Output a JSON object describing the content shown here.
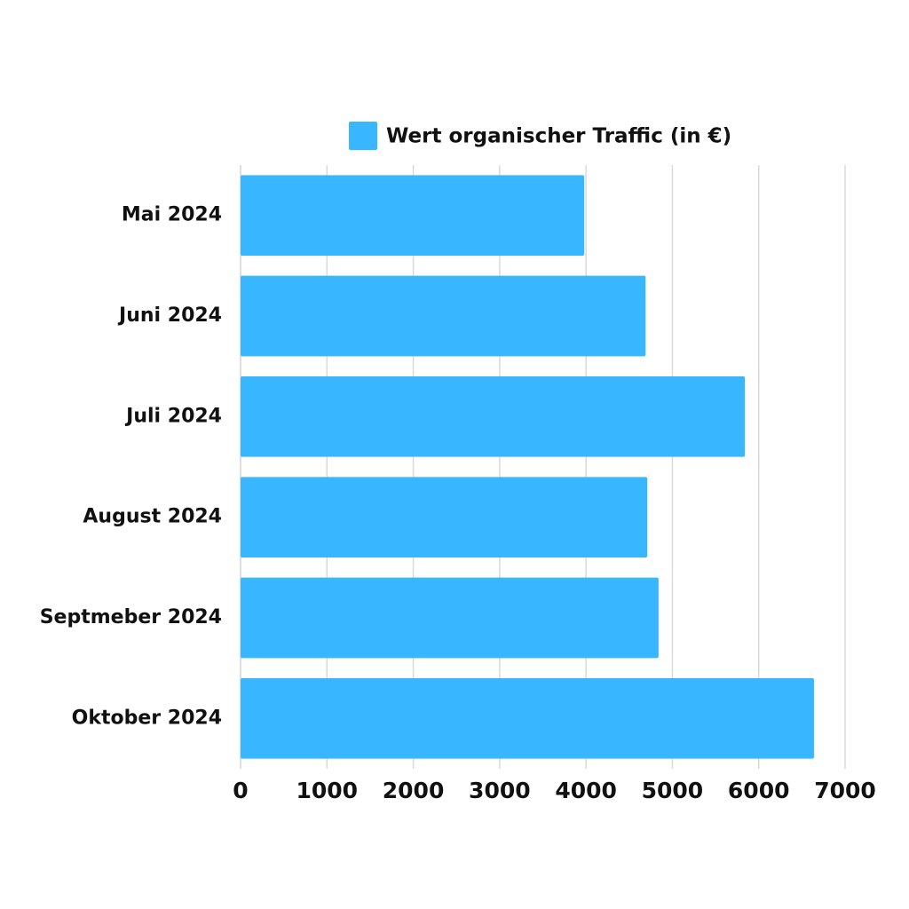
{
  "chart_data": {
    "type": "bar",
    "orientation": "horizontal",
    "categories": [
      "Mai 2024",
      "Juni 2024",
      "Juli 2024",
      "August 2024",
      "Septmeber 2024",
      "Oktober 2024"
    ],
    "series": [
      {
        "name": "Wert organischer Traffic (in €)",
        "color": "#38b6ff",
        "values": [
          3980,
          4690,
          5840,
          4710,
          4840,
          6640
        ]
      }
    ],
    "xlim": [
      0,
      7000
    ],
    "xticks": [
      0,
      1000,
      2000,
      3000,
      4000,
      5000,
      6000,
      7000
    ],
    "grid": true,
    "legend": "top"
  }
}
